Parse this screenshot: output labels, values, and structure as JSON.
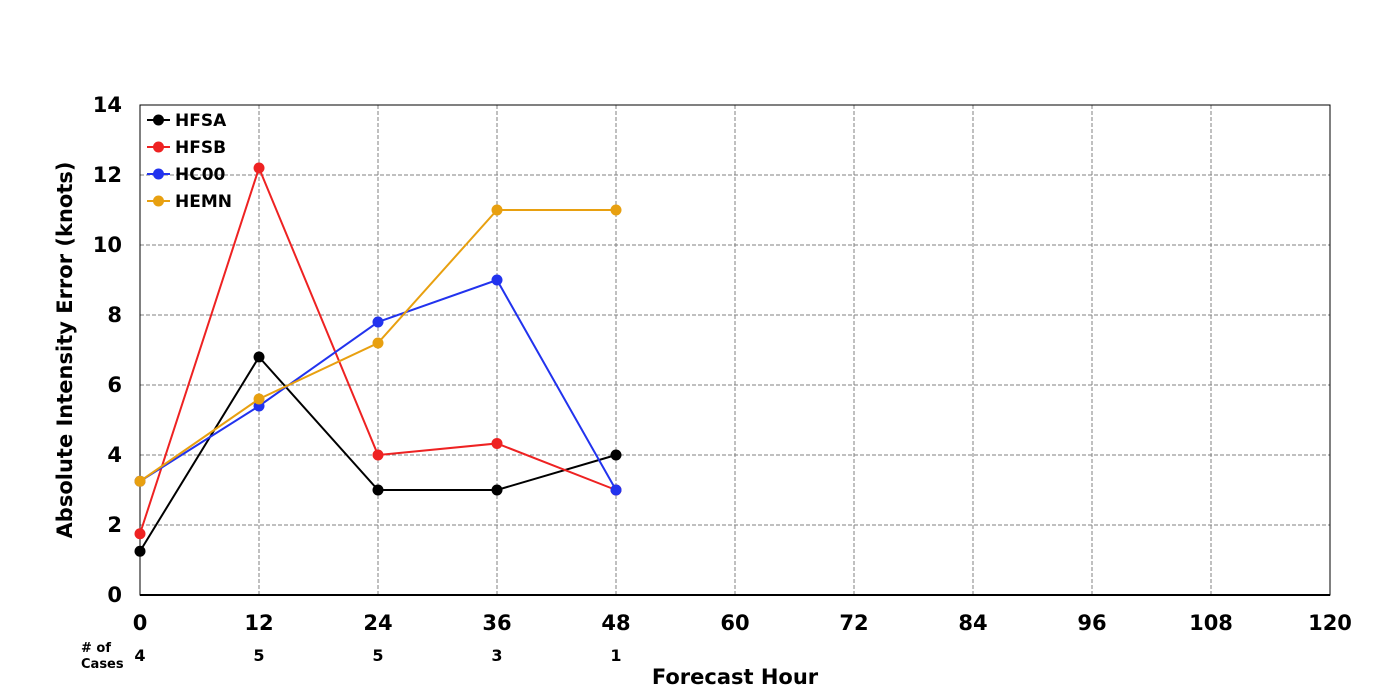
{
  "chart_data": {
    "type": "line",
    "xlabel": "Forecast Hour",
    "ylabel": "Absolute Intensity Error (knots)",
    "xlim": [
      0,
      120
    ],
    "ylim": [
      0,
      14
    ],
    "x_ticks": [
      0,
      12,
      24,
      36,
      48,
      60,
      72,
      84,
      96,
      108,
      120
    ],
    "y_ticks": [
      0,
      2,
      4,
      6,
      8,
      10,
      12,
      14
    ],
    "grid": true,
    "legend_position": "top-left",
    "series": [
      {
        "name": "HFSA",
        "color": "#000000",
        "x": [
          0,
          12,
          24,
          36,
          48
        ],
        "y": [
          1.25,
          6.8,
          3.0,
          3.0,
          4.0
        ]
      },
      {
        "name": "HFSB",
        "color": "#ee2222",
        "x": [
          0,
          12,
          24,
          36,
          48
        ],
        "y": [
          1.75,
          12.2,
          4.0,
          4.33,
          3.0
        ]
      },
      {
        "name": "HC00",
        "color": "#2233ee",
        "x": [
          0,
          12,
          24,
          36,
          48
        ],
        "y": [
          3.25,
          5.4,
          7.8,
          9.0,
          3.0
        ]
      },
      {
        "name": "HEMN",
        "color": "#e8a010",
        "x": [
          0,
          12,
          24,
          36,
          48
        ],
        "y": [
          3.25,
          5.6,
          7.2,
          11.0,
          11.0
        ]
      }
    ],
    "cases": {
      "label_line1": "# of",
      "label_line2": "Cases",
      "x": [
        0,
        12,
        24,
        36,
        48
      ],
      "values": [
        4,
        5,
        5,
        3,
        1
      ]
    }
  }
}
